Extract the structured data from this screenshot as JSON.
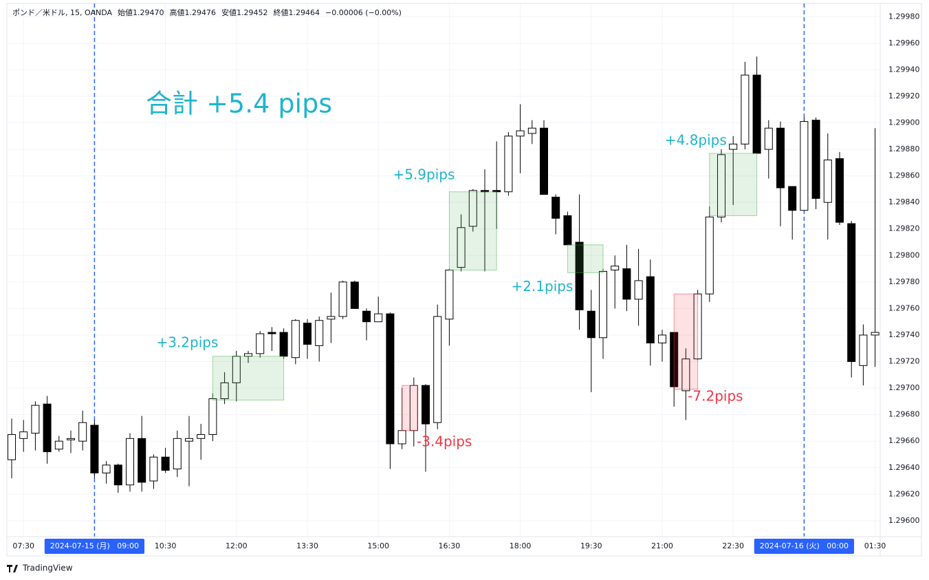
{
  "chart_data": {
    "type": "candlestick",
    "header": [
      "ポンド／米ドル, 15, OANDA",
      "始値1.29470",
      "高値1.29476",
      "安値1.29452",
      "終値1.29464",
      "−0.00006 (−0.00%)"
    ],
    "total": "合計 +5.4 pips",
    "total_color": "#1fb4cc",
    "footer": "TradingView",
    "categories": [
      null,
      "07:30",
      null,
      null,
      null,
      null,
      null,
      "2024-07-15 (月)   09:00",
      null,
      null,
      null,
      null,
      null,
      "10:30",
      null,
      null,
      null,
      null,
      null,
      "12:00",
      null,
      null,
      null,
      null,
      null,
      "13:30",
      null,
      null,
      null,
      null,
      null,
      "15:00",
      null,
      null,
      null,
      null,
      null,
      "16:30",
      null,
      null,
      null,
      null,
      null,
      "18:00",
      null,
      null,
      null,
      null,
      null,
      "19:30",
      null,
      null,
      null,
      null,
      null,
      "21:00",
      null,
      null,
      null,
      null,
      null,
      "22:30",
      null,
      null,
      null,
      null,
      null,
      "2024-07-16 (火)   00:00",
      null,
      null,
      null,
      null,
      null,
      "01:30"
    ],
    "open": [
      1.29646,
      1.29662,
      1.29666,
      1.29688,
      1.29654,
      1.29661,
      1.2966,
      1.29672,
      1.29636,
      1.29642,
      1.29627,
      1.29662,
      1.2963,
      1.29648,
      1.29639,
      1.2966,
      1.29662,
      1.29665,
      1.29692,
      1.29704,
      1.29724,
      1.29726,
      1.29742,
      1.29742,
      1.29723,
      1.29749,
      1.29732,
      1.29752,
      1.29754,
      1.2978,
      1.29758,
      1.2975,
      1.29756,
      1.29658,
      1.29668,
      1.29702,
      1.29674,
      1.29752,
      1.29791,
      1.29822,
      1.29849,
      1.29849,
      1.29848,
      1.2989,
      1.29892,
      1.29896,
      1.29844,
      1.2983,
      1.2981,
      1.29758,
      1.29738,
      1.29789,
      1.2979,
      1.29767,
      1.29784,
      1.29734,
      1.29742,
      1.29698,
      1.29722,
      1.29771,
      1.29829,
      1.2988,
      1.29884,
      1.29936,
      1.2988,
      1.29896,
      1.29852,
      1.29834,
      1.29902,
      1.2984,
      1.29873,
      1.29824,
      1.29717,
      1.2974
    ],
    "high": [
      1.29677,
      1.29676,
      1.2969,
      1.29694,
      1.29664,
      1.29668,
      1.29683,
      1.29676,
      1.29645,
      1.29643,
      1.29666,
      1.29679,
      1.2965,
      1.29655,
      1.29668,
      1.29679,
      1.29673,
      1.29696,
      1.29712,
      1.29728,
      1.29728,
      1.29743,
      1.29746,
      1.29745,
      1.29752,
      1.29752,
      1.29754,
      1.29772,
      1.29781,
      1.29781,
      1.2976,
      1.29769,
      1.29757,
      1.297,
      1.29708,
      1.29703,
      1.29763,
      1.2979,
      1.29831,
      1.2985,
      1.29865,
      1.29886,
      1.29893,
      1.29914,
      1.29902,
      1.29902,
      1.29846,
      1.29833,
      1.29846,
      1.29774,
      1.2979,
      1.298,
      1.29808,
      1.29805,
      1.29797,
      1.29744,
      1.29742,
      1.2973,
      1.29774,
      1.29837,
      1.2988,
      1.2989,
      1.29946,
      1.2995,
      1.29902,
      1.29901,
      1.29852,
      1.29904,
      1.29904,
      1.29892,
      1.29878,
      1.29826,
      1.29748,
      1.29896
    ],
    "low": [
      1.29632,
      1.29652,
      1.29653,
      1.29643,
      1.29652,
      1.29651,
      1.29653,
      1.29632,
      1.29628,
      1.29621,
      1.29622,
      1.29622,
      1.29624,
      1.29636,
      1.29633,
      1.29626,
      1.29646,
      1.2966,
      1.29688,
      1.2969,
      1.29719,
      1.29723,
      1.29728,
      1.29722,
      1.29718,
      1.29722,
      1.2972,
      1.29734,
      1.29752,
      1.2976,
      1.29736,
      1.2975,
      1.29639,
      1.29654,
      1.29656,
      1.29637,
      1.29669,
      1.29732,
      1.29788,
      1.29818,
      1.29788,
      1.2982,
      1.29845,
      1.29862,
      1.29884,
      1.29846,
      1.29816,
      1.29808,
      1.29744,
      1.29697,
      1.29722,
      1.2976,
      1.29758,
      1.29747,
      1.29717,
      1.2972,
      1.29686,
      1.29676,
      1.29721,
      1.29765,
      1.29825,
      1.29838,
      1.2988,
      1.29877,
      1.29858,
      1.29822,
      1.29812,
      1.29834,
      1.29835,
      1.29812,
      1.29823,
      1.29708,
      1.29702,
      1.29716
    ],
    "close": [
      1.29665,
      1.29667,
      1.29687,
      1.29652,
      1.2966,
      1.29662,
      1.29674,
      1.29636,
      1.29642,
      1.29627,
      1.29662,
      1.29629,
      1.29648,
      1.29638,
      1.29662,
      1.29662,
      1.29665,
      1.29692,
      1.29704,
      1.29724,
      1.29726,
      1.29741,
      1.29741,
      1.29724,
      1.29751,
      1.29733,
      1.29751,
      1.29754,
      1.2978,
      1.2976,
      1.2975,
      1.29756,
      1.29658,
      1.29668,
      1.29702,
      1.29673,
      1.29754,
      1.29789,
      1.29821,
      1.29849,
      1.29848,
      1.29848,
      1.2989,
      1.29894,
      1.29896,
      1.29846,
      1.29828,
      1.29808,
      1.29759,
      1.29738,
      1.29788,
      1.29792,
      1.29767,
      1.29781,
      1.29734,
      1.2974,
      1.29701,
      1.29722,
      1.29771,
      1.29829,
      1.29876,
      1.29884,
      1.29936,
      1.29877,
      1.29896,
      1.29851,
      1.29834,
      1.29901,
      1.29843,
      1.29872,
      1.29825,
      1.2972,
      1.2974,
      1.29742
    ],
    "up_color": "#ffffff",
    "down_color": "#000000",
    "ylim": [
      1.29588,
      1.2999
    ],
    "yticks": [
      {
        "value": 1.296,
        "label": "1.29600"
      },
      {
        "value": 1.2962,
        "label": "1.29620"
      },
      {
        "value": 1.2964,
        "label": "1.29640"
      },
      {
        "value": 1.2966,
        "label": "1.29660"
      },
      {
        "value": 1.2968,
        "label": "1.29680"
      },
      {
        "value": 1.297,
        "label": "1.29700"
      },
      {
        "value": 1.2972,
        "label": "1.29720"
      },
      {
        "value": 1.2974,
        "label": "1.29740"
      },
      {
        "value": 1.2976,
        "label": "1.29760"
      },
      {
        "value": 1.2978,
        "label": "1.29780"
      },
      {
        "value": 1.298,
        "label": "1.29800"
      },
      {
        "value": 1.2982,
        "label": "1.29820"
      },
      {
        "value": 1.2984,
        "label": "1.29840"
      },
      {
        "value": 1.2986,
        "label": "1.29860"
      },
      {
        "value": 1.2988,
        "label": "1.29880"
      },
      {
        "value": 1.299,
        "label": "1.29900"
      },
      {
        "value": 1.2992,
        "label": "1.29920"
      },
      {
        "value": 1.2994,
        "label": "1.29940"
      },
      {
        "value": 1.2996,
        "label": "1.29960"
      },
      {
        "value": 1.2998,
        "label": "1.29980"
      }
    ],
    "grid": true,
    "boxes": [
      {
        "label": "+3.2pips",
        "x": [
          17,
          23
        ],
        "y": [
          1.29691,
          1.29724
        ],
        "color": "#4caf50",
        "label_color": "#1fb4cc"
      },
      {
        "label": "-3.4pips",
        "x": [
          33,
          34.3
        ],
        "y": [
          1.29668,
          1.29702
        ],
        "color": "#f23645",
        "label_color": "#f23645"
      },
      {
        "label": "+5.9pips",
        "x": [
          37,
          41
        ],
        "y": [
          1.29789,
          1.29848
        ],
        "color": "#4caf50",
        "label_color": "#1fb4cc"
      },
      {
        "label": "+2.1pips",
        "x": [
          47,
          50
        ],
        "y": [
          1.29787,
          1.29808
        ],
        "color": "#4caf50",
        "label_color": "#1fb4cc"
      },
      {
        "label": "-7.2pips",
        "x": [
          56,
          58
        ],
        "y": [
          1.29699,
          1.29771
        ],
        "color": "#f23645",
        "label_color": "#f23645"
      },
      {
        "label": "+4.8pips",
        "x": [
          59,
          63
        ],
        "y": [
          1.2983,
          1.29877
        ],
        "color": "#4caf50",
        "label_color": "#1fb4cc"
      }
    ]
  }
}
